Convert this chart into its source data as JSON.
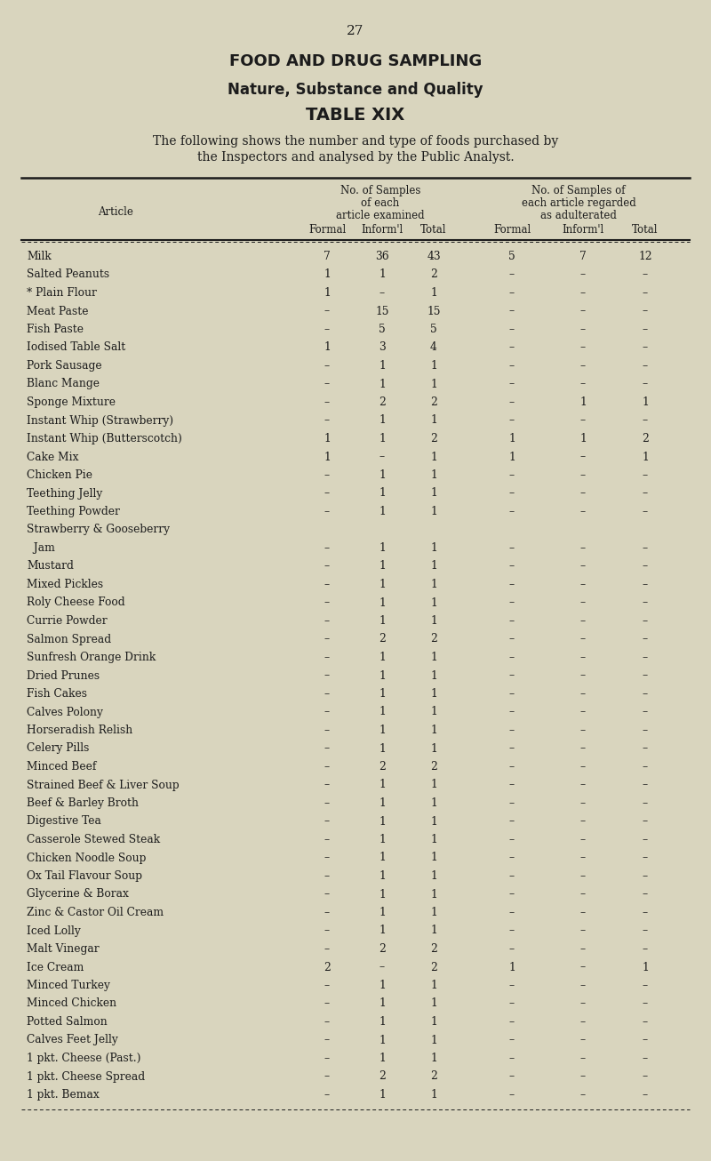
{
  "page_number": "27",
  "title1": "FOOD AND DRUG SAMPLING",
  "title2": "Nature, Substance and Quality",
  "title3": "TABLE XIX",
  "description_line1": "The following shows the number and type of foods purchased by",
  "description_line2": "the Inspectors and analysed by the Public Analyst.",
  "col_header1_line1": "No. of Samples",
  "col_header1_line2": "of each",
  "col_header1_line3": "article examined",
  "col_header2_line1": "No. of Samples of",
  "col_header2_line2": "each article regarded",
  "col_header2_line3": "as adulterated",
  "sub_headers": [
    "Formal",
    "Inform'l",
    "Total",
    "Formal",
    "Inform'l",
    "Total"
  ],
  "article_label": "Article",
  "background_color": "#d9d5be",
  "text_color": "#1c1c1c",
  "fig_width": 8.0,
  "fig_height": 13.06,
  "dpi": 100,
  "rows": [
    {
      "article": "Milk",
      "dots": true,
      "f1": "7",
      "i1": "36",
      "t1": "43",
      "f2": "5",
      "i2": "7",
      "t2": "12"
    },
    {
      "article": "Salted Peanuts",
      "dots": false,
      "f1": "1",
      "i1": "1",
      "t1": "2",
      "f2": "–",
      "i2": "–",
      "t2": "–"
    },
    {
      "article": "* Plain Flour",
      "dots": true,
      "f1": "1",
      "i1": "–",
      "t1": "1",
      "f2": "–",
      "i2": "–",
      "t2": "–"
    },
    {
      "article": "Meat Paste",
      "dots": true,
      "f1": "–",
      "i1": "15",
      "t1": "15",
      "f2": "–",
      "i2": "–",
      "t2": "–"
    },
    {
      "article": "Fish Paste",
      "dots": true,
      "f1": "–",
      "i1": "5",
      "t1": "5",
      "f2": "–",
      "i2": "–",
      "t2": "–"
    },
    {
      "article": "Iodised Table Salt",
      "dots": true,
      "f1": "1",
      "i1": "3",
      "t1": "4",
      "f2": "–",
      "i2": "–",
      "t2": "–"
    },
    {
      "article": "Pork Sausage",
      "dots": true,
      "f1": "–",
      "i1": "1",
      "t1": "1",
      "f2": "–",
      "i2": "–",
      "t2": "–"
    },
    {
      "article": "Blanc Mange",
      "dots": true,
      "f1": "–",
      "i1": "1",
      "t1": "1",
      "f2": "–",
      "i2": "–",
      "t2": "–"
    },
    {
      "article": "Sponge Mixture",
      "dots": true,
      "f1": "–",
      "i1": "2",
      "t1": "2",
      "f2": "–",
      "i2": "1",
      "t2": "1"
    },
    {
      "article": "Instant Whip (Strawberry)",
      "dots": false,
      "f1": "–",
      "i1": "1",
      "t1": "1",
      "f2": "–",
      "i2": "–",
      "t2": "–"
    },
    {
      "article": "Instant Whip (Butterscotch)",
      "dots": false,
      "f1": "1",
      "i1": "1",
      "t1": "2",
      "f2": "1",
      "i2": "1",
      "t2": "2"
    },
    {
      "article": "Cake Mix",
      "dots": true,
      "f1": "1",
      "i1": "–",
      "t1": "1",
      "f2": "1",
      "i2": "–",
      "t2": "1"
    },
    {
      "article": "Chicken Pie",
      "dots": true,
      "f1": "–",
      "i1": "1",
      "t1": "1",
      "f2": "–",
      "i2": "–",
      "t2": "–"
    },
    {
      "article": "Teething Jelly",
      "dots": true,
      "f1": "–",
      "i1": "1",
      "t1": "1",
      "f2": "–",
      "i2": "–",
      "t2": "–"
    },
    {
      "article": "Teething Powder",
      "dots": true,
      "f1": "–",
      "i1": "1",
      "t1": "1",
      "f2": "–",
      "i2": "–",
      "t2": "–"
    },
    {
      "article": "Strawberry & Gooseberry",
      "dots": true,
      "f1": "",
      "i1": "",
      "t1": "",
      "f2": "",
      "i2": "",
      "t2": "",
      "continuation": true
    },
    {
      "article": "  Jam",
      "dots": true,
      "f1": "–",
      "i1": "1",
      "t1": "1",
      "f2": "–",
      "i2": "–",
      "t2": "–",
      "indent": true
    },
    {
      "article": "Mustard",
      "dots": true,
      "f1": "–",
      "i1": "1",
      "t1": "1",
      "f2": "–",
      "i2": "–",
      "t2": "–"
    },
    {
      "article": "Mixed Pickles",
      "dots": true,
      "f1": "–",
      "i1": "1",
      "t1": "1",
      "f2": "–",
      "i2": "–",
      "t2": "–"
    },
    {
      "article": "Roly Cheese Food",
      "dots": true,
      "f1": "–",
      "i1": "1",
      "t1": "1",
      "f2": "–",
      "i2": "–",
      "t2": "–"
    },
    {
      "article": "Currie Powder",
      "dots": true,
      "f1": "–",
      "i1": "1",
      "t1": "1",
      "f2": "–",
      "i2": "–",
      "t2": "–"
    },
    {
      "article": "Salmon Spread",
      "dots": true,
      "f1": "–",
      "i1": "2",
      "t1": "2",
      "f2": "–",
      "i2": "–",
      "t2": "–"
    },
    {
      "article": "Sunfresh Orange Drink",
      "dots": true,
      "f1": "–",
      "i1": "1",
      "t1": "1",
      "f2": "–",
      "i2": "–",
      "t2": "–"
    },
    {
      "article": "Dried Prunes",
      "dots": true,
      "f1": "–",
      "i1": "1",
      "t1": "1",
      "f2": "–",
      "i2": "–",
      "t2": "–"
    },
    {
      "article": "Fish Cakes",
      "dots": true,
      "f1": "–",
      "i1": "1",
      "t1": "1",
      "f2": "–",
      "i2": "–",
      "t2": "–"
    },
    {
      "article": "Calves Polony",
      "dots": true,
      "f1": "–",
      "i1": "1",
      "t1": "1",
      "f2": "–",
      "i2": "–",
      "t2": "–"
    },
    {
      "article": "Horseradish Relish",
      "dots": true,
      "f1": "–",
      "i1": "1",
      "t1": "1",
      "f2": "–",
      "i2": "–",
      "t2": "–"
    },
    {
      "article": "Celery Pills",
      "dots": true,
      "f1": "–",
      "i1": "1",
      "t1": "1",
      "f2": "–",
      "i2": "–",
      "t2": "–"
    },
    {
      "article": "Minced Beef",
      "dots": true,
      "f1": "–",
      "i1": "2",
      "t1": "2",
      "f2": "–",
      "i2": "–",
      "t2": "–"
    },
    {
      "article": "Strained Beef & Liver Soup",
      "dots": false,
      "f1": "–",
      "i1": "1",
      "t1": "1",
      "f2": "–",
      "i2": "–",
      "t2": "–"
    },
    {
      "article": "Beef & Barley Broth",
      "dots": true,
      "f1": "–",
      "i1": "1",
      "t1": "1",
      "f2": "–",
      "i2": "–",
      "t2": "–"
    },
    {
      "article": "Digestive Tea",
      "dots": true,
      "f1": "–",
      "i1": "1",
      "t1": "1",
      "f2": "–",
      "i2": "–",
      "t2": "–"
    },
    {
      "article": "Casserole Stewed Steak",
      "dots": true,
      "f1": "–",
      "i1": "1",
      "t1": "1",
      "f2": "–",
      "i2": "–",
      "t2": "–"
    },
    {
      "article": "Chicken Noodle Soup",
      "dots": true,
      "f1": "–",
      "i1": "1",
      "t1": "1",
      "f2": "–",
      "i2": "–",
      "t2": "–"
    },
    {
      "article": "Ox Tail Flavour Soup",
      "dots": true,
      "f1": "–",
      "i1": "1",
      "t1": "1",
      "f2": "–",
      "i2": "–",
      "t2": "–"
    },
    {
      "article": "Glycerine & Borax",
      "dots": true,
      "f1": "–",
      "i1": "1",
      "t1": "1",
      "f2": "–",
      "i2": "–",
      "t2": "–"
    },
    {
      "article": "Zinc & Castor Oil Cream",
      "dots": true,
      "f1": "–",
      "i1": "1",
      "t1": "1",
      "f2": "–",
      "i2": "–",
      "t2": "–"
    },
    {
      "article": "Iced Lolly",
      "dots": true,
      "f1": "–",
      "i1": "1",
      "t1": "1",
      "f2": "–",
      "i2": "–",
      "t2": "–"
    },
    {
      "article": "Malt Vinegar",
      "dots": true,
      "f1": "–",
      "i1": "2",
      "t1": "2",
      "f2": "–",
      "i2": "–",
      "t2": "–"
    },
    {
      "article": "Ice Cream",
      "dots": true,
      "f1": "2",
      "i1": "–",
      "t1": "2",
      "f2": "1",
      "i2": "–",
      "t2": "1"
    },
    {
      "article": "Minced Turkey",
      "dots": true,
      "f1": "–",
      "i1": "1",
      "t1": "1",
      "f2": "–",
      "i2": "–",
      "t2": "–"
    },
    {
      "article": "Minced Chicken",
      "dots": true,
      "f1": "–",
      "i1": "1",
      "t1": "1",
      "f2": "–",
      "i2": "–",
      "t2": "–"
    },
    {
      "article": "Potted Salmon",
      "dots": true,
      "f1": "–",
      "i1": "1",
      "t1": "1",
      "f2": "–",
      "i2": "–",
      "t2": "–"
    },
    {
      "article": "Calves Feet Jelly",
      "dots": true,
      "f1": "–",
      "i1": "1",
      "t1": "1",
      "f2": "–",
      "i2": "–",
      "t2": "–"
    },
    {
      "article": "1 pkt. Cheese (Past.)",
      "dots": true,
      "f1": "–",
      "i1": "1",
      "t1": "1",
      "f2": "–",
      "i2": "–",
      "t2": "–"
    },
    {
      "article": "1 pkt. Cheese Spread",
      "dots": true,
      "f1": "–",
      "i1": "2",
      "t1": "2",
      "f2": "–",
      "i2": "–",
      "t2": "–"
    },
    {
      "article": "1 pkt. Bemax",
      "dots": true,
      "f1": "–",
      "i1": "1",
      "t1": "1",
      "f2": "–",
      "i2": "–",
      "t2": "–"
    }
  ]
}
